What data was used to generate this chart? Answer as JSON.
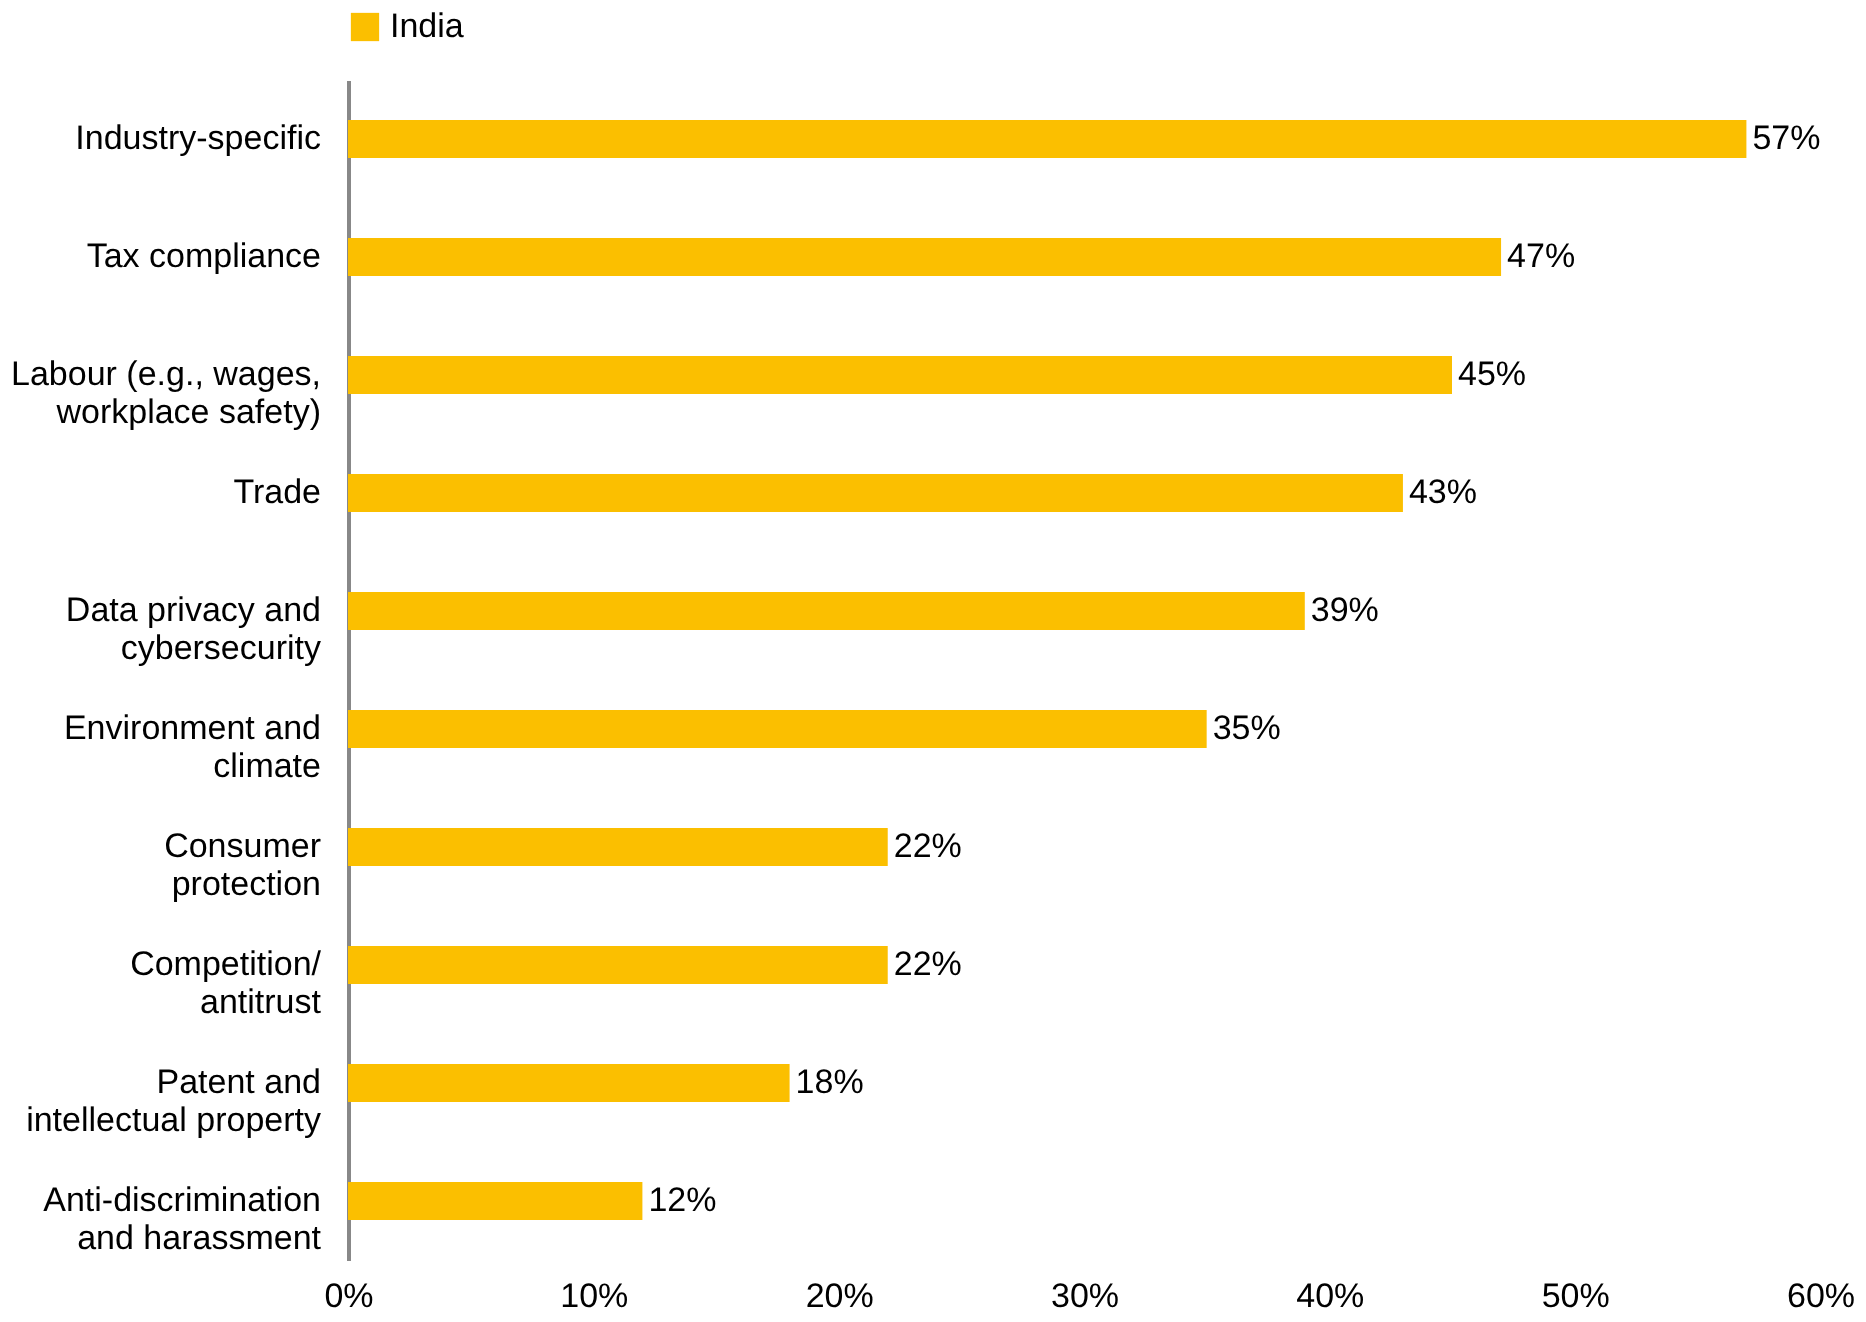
{
  "chart_data": {
    "type": "bar",
    "orientation": "horizontal",
    "categories": [
      "Industry-specific",
      "Tax compliance",
      "Labour (e.g., wages,\nworkplace safety)",
      "Trade",
      "Data privacy and\ncybersecurity",
      "Environment and\nclimate",
      "Consumer\nprotection",
      "Competition/\nantitrust",
      "Patent and\nintellectual property",
      "Anti-discrimination\nand harassment"
    ],
    "series": [
      {
        "name": "India",
        "color": "#fbbf00",
        "values": [
          57,
          47,
          45,
          43,
          39,
          35,
          22,
          22,
          18,
          12
        ],
        "value_labels": [
          "57%",
          "47%",
          "45%",
          "43%",
          "39%",
          "35%",
          "22%",
          "22%",
          "18%",
          "12%"
        ]
      }
    ],
    "xlim": [
      0,
      60
    ],
    "xticks": [
      {
        "value": 0,
        "label": "0%"
      },
      {
        "value": 10,
        "label": "10%"
      },
      {
        "value": 20,
        "label": "20%"
      },
      {
        "value": 30,
        "label": "30%"
      },
      {
        "value": 40,
        "label": "40%"
      },
      {
        "value": 50,
        "label": "50%"
      },
      {
        "value": 60,
        "label": "60%"
      }
    ],
    "grid": false,
    "legend": "top"
  }
}
